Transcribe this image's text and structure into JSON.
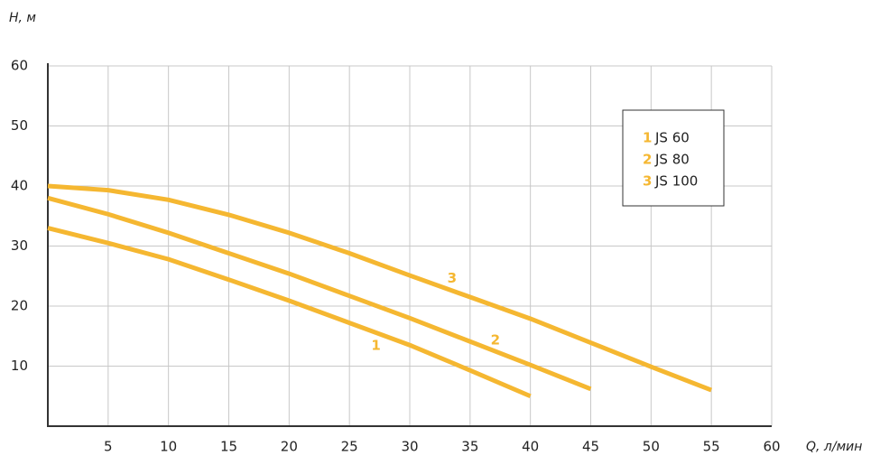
{
  "chart_data": {
    "type": "line",
    "y_label": "H, м",
    "x_label": "Q, л/мин",
    "x": [
      0,
      5,
      10,
      15,
      20,
      25,
      30,
      35,
      40,
      45,
      50,
      55
    ],
    "series": [
      {
        "name": "JS 60",
        "label": "1",
        "color": "#f5b731",
        "values": [
          33,
          30.5,
          27.8,
          24.4,
          20.9,
          17.2,
          13.5,
          9.3,
          5,
          null,
          null,
          null
        ]
      },
      {
        "name": "JS 80",
        "label": "2",
        "color": "#f5b731",
        "values": [
          38,
          35.3,
          32.2,
          28.8,
          25.4,
          21.7,
          18,
          14.1,
          10.2,
          6.2,
          null,
          null
        ]
      },
      {
        "name": "JS 100",
        "label": "3",
        "color": "#f5b731",
        "values": [
          40,
          39.3,
          37.7,
          35.2,
          32.2,
          28.8,
          25.1,
          21.5,
          17.9,
          13.9,
          9.9,
          6
        ]
      }
    ],
    "annotations": [
      {
        "text": "1",
        "x": 27.2,
        "y": 13.4
      },
      {
        "text": "2",
        "x": 37.1,
        "y": 14.3
      },
      {
        "text": "3",
        "x": 33.5,
        "y": 24.6
      }
    ],
    "xlim": [
      0,
      60
    ],
    "ylim": [
      0,
      60
    ],
    "xticks": [
      5,
      10,
      15,
      20,
      25,
      30,
      35,
      40,
      45,
      50,
      55,
      60
    ],
    "yticks": [
      10,
      20,
      30,
      40,
      50,
      60
    ],
    "grid": true,
    "legend": "upper right"
  }
}
